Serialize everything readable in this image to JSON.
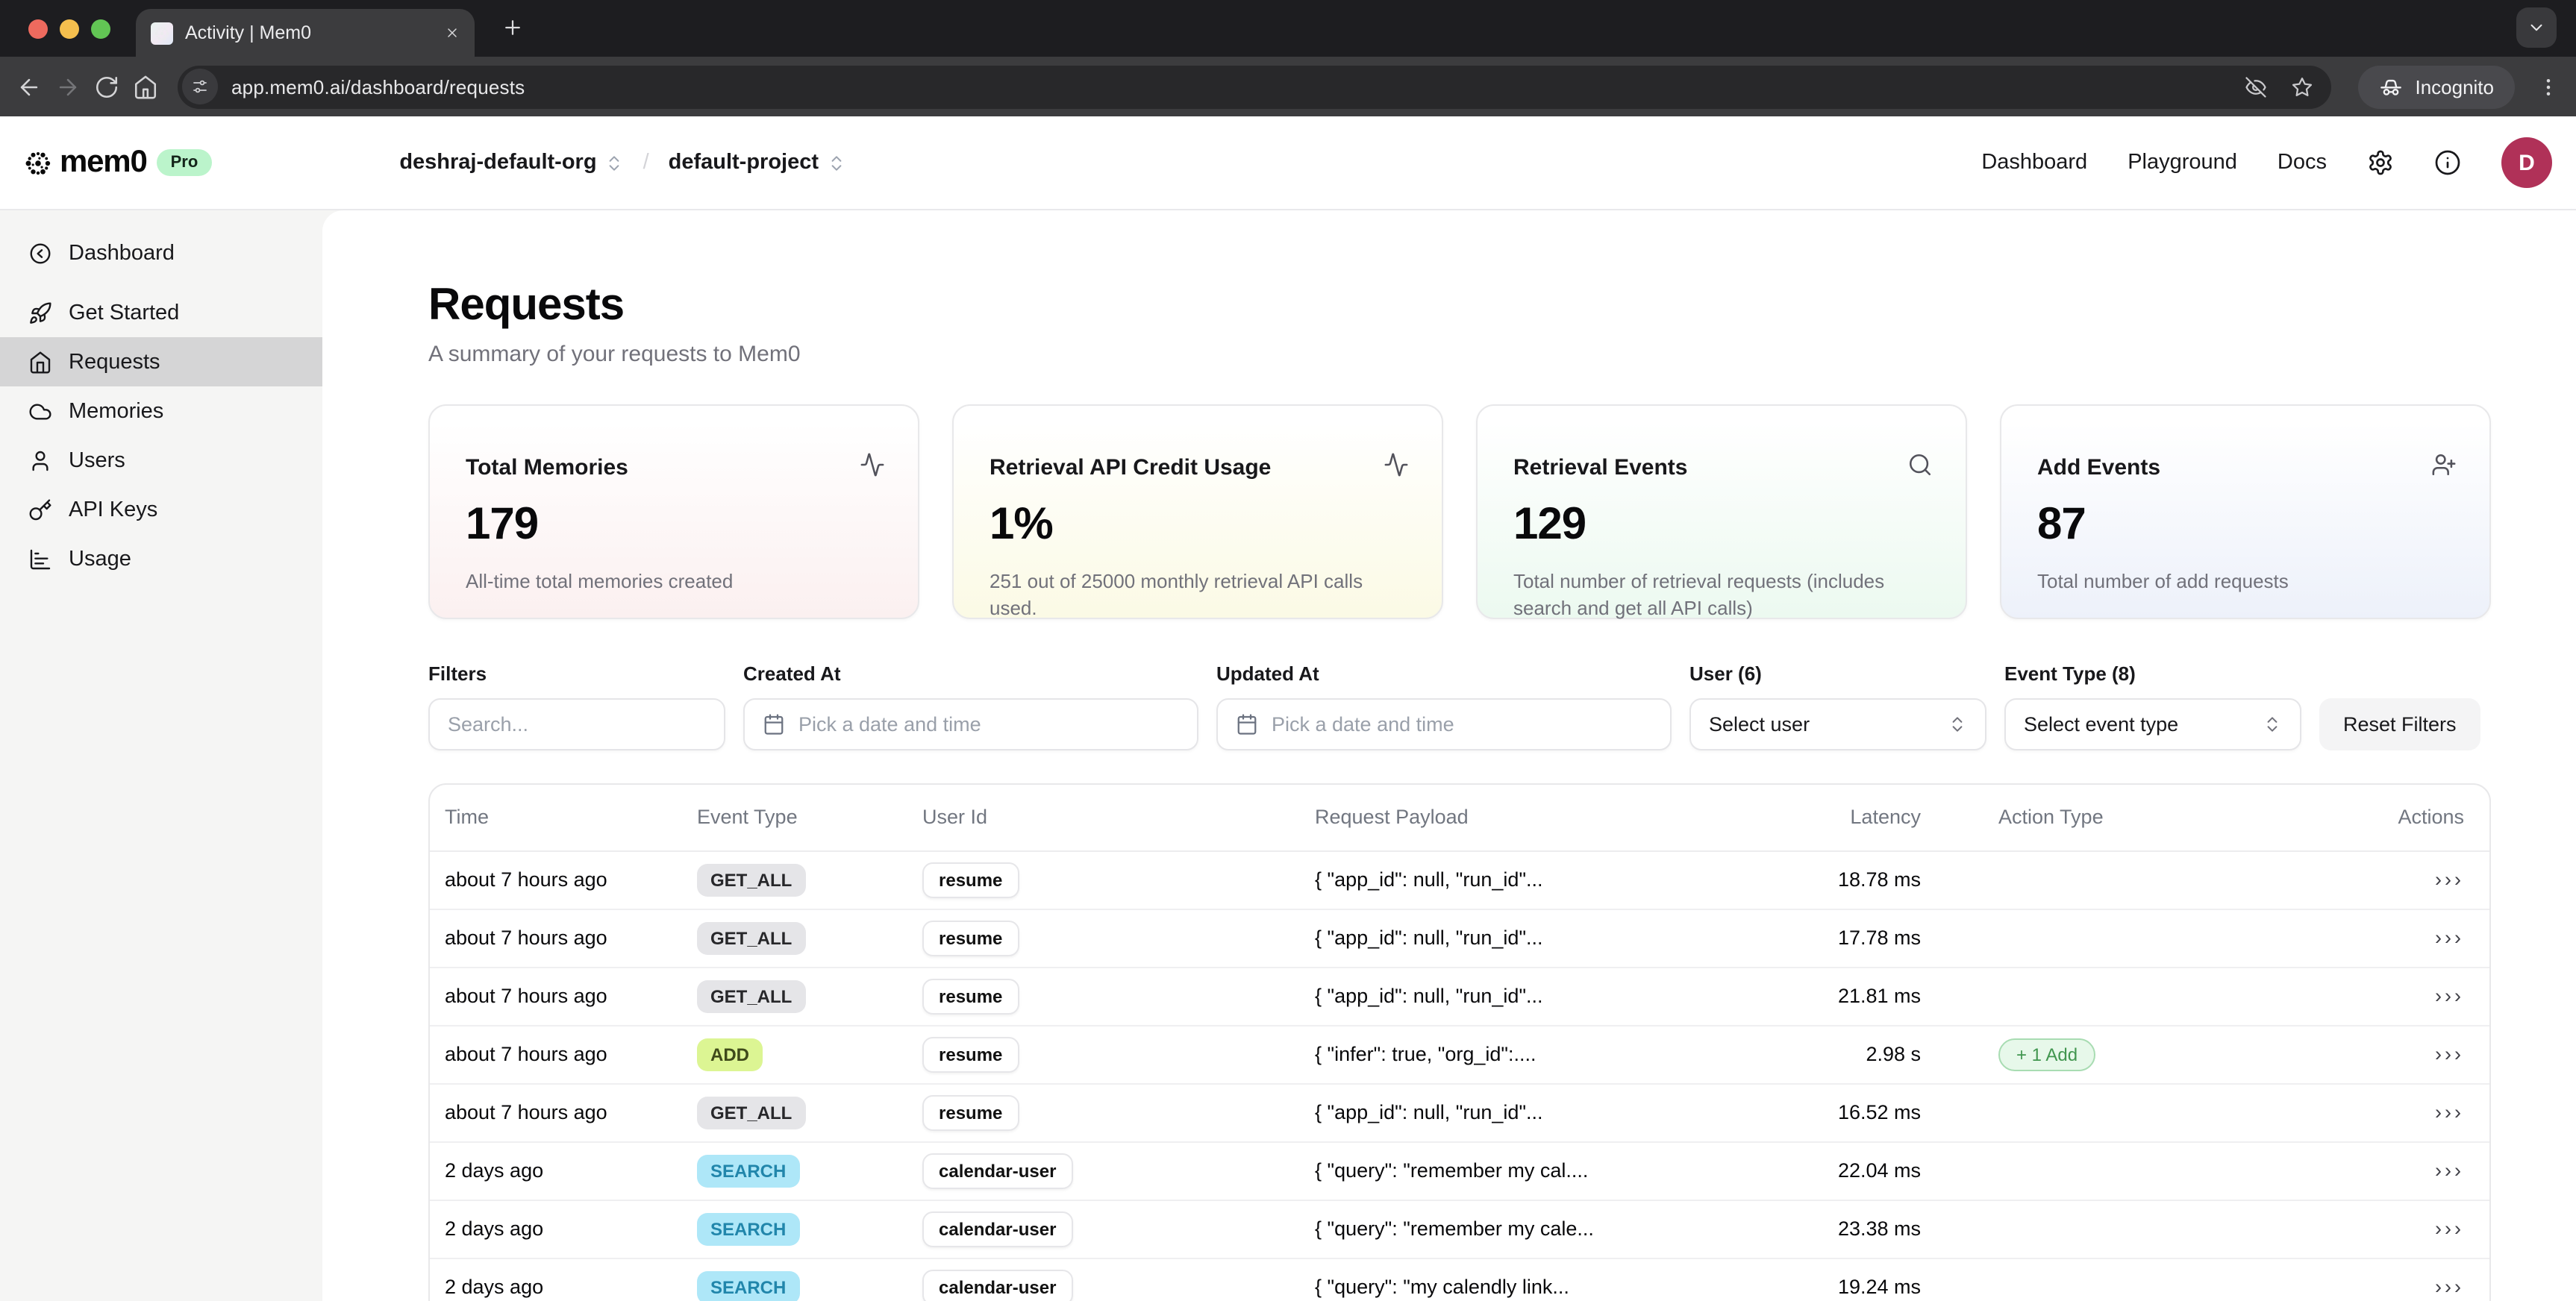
{
  "theme": {
    "tl_red": "#ee6a5e",
    "tl_yellow": "#f5bf4e",
    "tl_green": "#62c554",
    "pro_bg": "#bbf4cb",
    "avatar_bg": "#b03158",
    "add_badge_bg": "#e7f8ea",
    "add_badge_border": "#a8dcb2",
    "add_badge_text": "#41964f"
  },
  "browser": {
    "tab_title": "Activity | Mem0",
    "url": "app.mem0.ai/dashboard/requests",
    "incognito_label": "Incognito"
  },
  "header": {
    "logo_text": "mem0",
    "plan_badge": "Pro",
    "org": "deshraj-default-org",
    "separator": "/",
    "project": "default-project",
    "nav": [
      {
        "label": "Dashboard"
      },
      {
        "label": "Playground"
      },
      {
        "label": "Docs"
      }
    ],
    "avatar_initial": "D"
  },
  "sidebar": {
    "items": [
      {
        "label": "Dashboard",
        "icon": "circle-arrow-left-icon",
        "active": false
      },
      {
        "label": "Get Started",
        "icon": "rocket-icon",
        "active": false
      },
      {
        "label": "Requests",
        "icon": "home-icon",
        "active": true
      },
      {
        "label": "Memories",
        "icon": "cloud-icon",
        "active": false
      },
      {
        "label": "Users",
        "icon": "user-icon",
        "active": false
      },
      {
        "label": "API Keys",
        "icon": "key-icon",
        "active": false
      },
      {
        "label": "Usage",
        "icon": "chart-icon",
        "active": false
      }
    ]
  },
  "page": {
    "title": "Requests",
    "subtitle": "A summary of your requests to Mem0"
  },
  "stats": [
    {
      "title": "Total Memories",
      "value": "179",
      "description": "All-time total memories created",
      "icon": "activity-icon",
      "tint": "#fbf0f0"
    },
    {
      "title": "Retrieval API Credit Usage",
      "value": "1%",
      "description": "251 out of 25000 monthly retrieval API calls used.",
      "icon": "activity-icon",
      "tint": "#fbfae5"
    },
    {
      "title": "Retrieval Events",
      "value": "129",
      "description": "Total number of retrieval requests (includes search and get all API calls)",
      "icon": "search-icon",
      "tint": "#ecf9f0"
    },
    {
      "title": "Add Events",
      "value": "87",
      "description": "Total number of add requests",
      "icon": "user-plus-icon",
      "tint": "#edf1fa"
    }
  ],
  "filters": {
    "search_label": "Filters",
    "search_placeholder": "Search...",
    "created_at_label": "Created At",
    "created_at_placeholder": "Pick a date and time",
    "updated_at_label": "Updated At",
    "updated_at_placeholder": "Pick a date and time",
    "user_label": "User (6)",
    "user_placeholder": "Select user",
    "event_type_label": "Event Type (8)",
    "event_type_placeholder": "Select event type",
    "reset_button": "Reset Filters"
  },
  "table": {
    "columns": [
      "Time",
      "Event Type",
      "User Id",
      "Request Payload",
      "Latency",
      "Action Type",
      "Actions"
    ],
    "actions_glyph": "›››",
    "badge_styles": {
      "GET_ALL": {
        "bg": "#e5e5e8",
        "text": "#27272a"
      },
      "ADD": {
        "bg": "#dcf593",
        "text": "#3f4a1a"
      },
      "SEARCH": {
        "bg": "#aee7f8",
        "text": "#2186ab"
      }
    },
    "rows": [
      {
        "time": "about 7 hours ago",
        "event_type": "GET_ALL",
        "user_id": "resume",
        "payload": "{ \"app_id\": null, \"run_id\"...",
        "latency": "18.78 ms",
        "action_type": ""
      },
      {
        "time": "about 7 hours ago",
        "event_type": "GET_ALL",
        "user_id": "resume",
        "payload": "{ \"app_id\": null, \"run_id\"...",
        "latency": "17.78 ms",
        "action_type": ""
      },
      {
        "time": "about 7 hours ago",
        "event_type": "GET_ALL",
        "user_id": "resume",
        "payload": "{ \"app_id\": null, \"run_id\"...",
        "latency": "21.81 ms",
        "action_type": ""
      },
      {
        "time": "about 7 hours ago",
        "event_type": "ADD",
        "user_id": "resume",
        "payload": "{ \"infer\": true, \"org_id\":....",
        "latency": "2.98 s",
        "action_type": "+ 1 Add"
      },
      {
        "time": "about 7 hours ago",
        "event_type": "GET_ALL",
        "user_id": "resume",
        "payload": "{ \"app_id\": null, \"run_id\"...",
        "latency": "16.52 ms",
        "action_type": ""
      },
      {
        "time": "2 days ago",
        "event_type": "SEARCH",
        "user_id": "calendar-user",
        "payload": "{ \"query\": \"remember my cal....",
        "latency": "22.04 ms",
        "action_type": ""
      },
      {
        "time": "2 days ago",
        "event_type": "SEARCH",
        "user_id": "calendar-user",
        "payload": "{ \"query\": \"remember my cale...",
        "latency": "23.38 ms",
        "action_type": ""
      },
      {
        "time": "2 days ago",
        "event_type": "SEARCH",
        "user_id": "calendar-user",
        "payload": "{ \"query\": \"my calendly link...",
        "latency": "19.24 ms",
        "action_type": ""
      }
    ]
  }
}
